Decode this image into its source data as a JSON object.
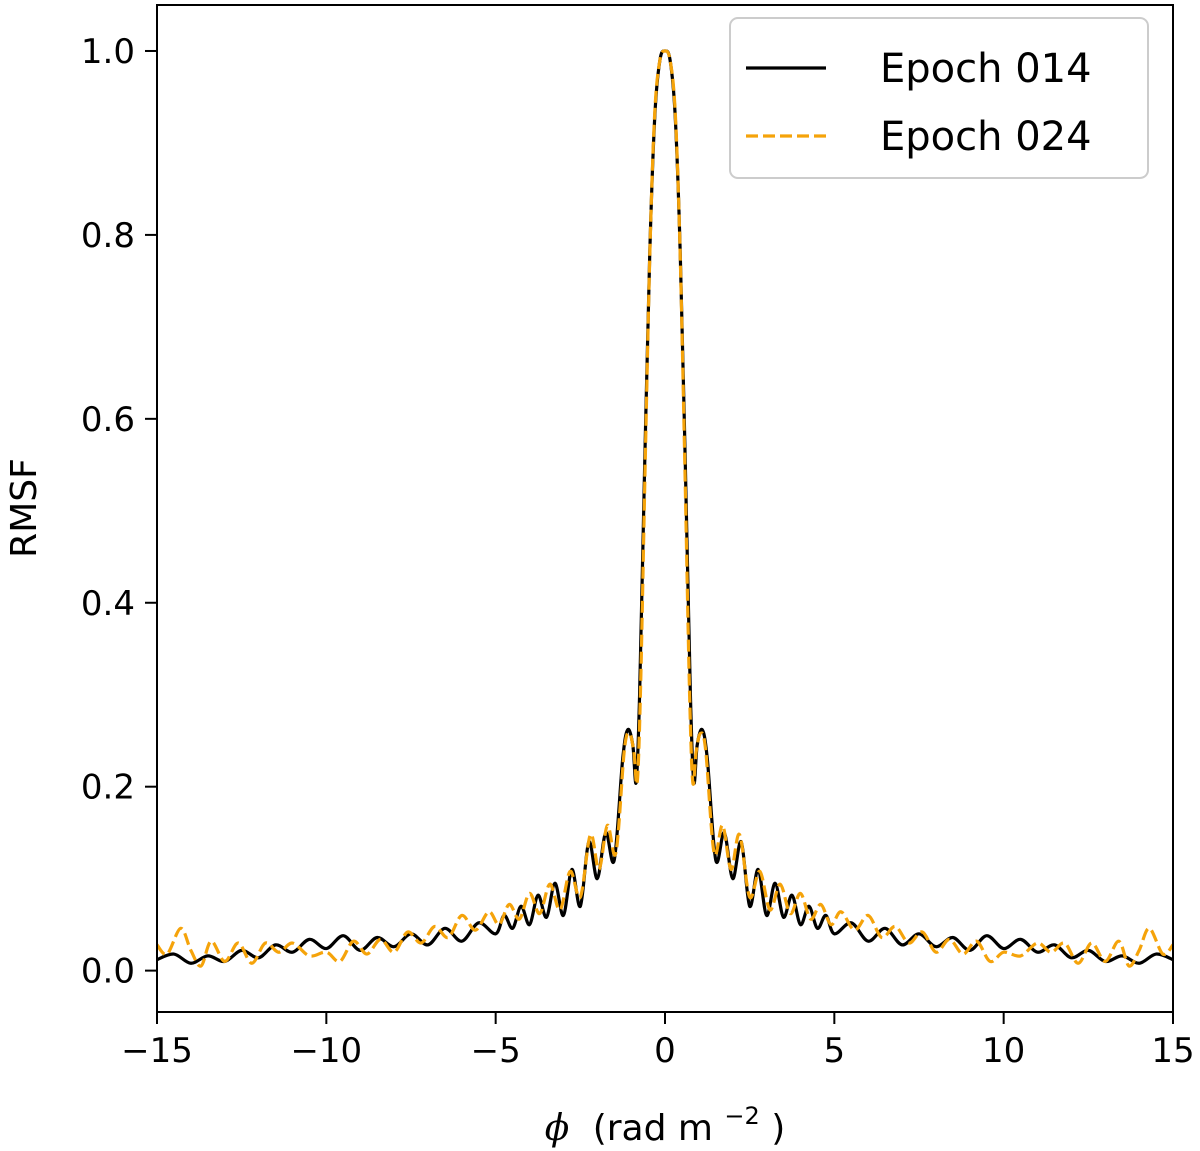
{
  "chart_data": {
    "type": "line",
    "title": "",
    "xlabel": "(rad m",
    "xlabel_symbol": "ϕ",
    "xlabel_exp": "−2",
    "xlabel_close": ")",
    "ylabel": "RMSF",
    "xlim": [
      -15,
      15
    ],
    "ylim": [
      -0.045,
      1.05
    ],
    "x_ticks": [
      -15,
      -10,
      -5,
      0,
      5,
      10,
      15
    ],
    "x_tick_labels": [
      "−15",
      "−10",
      "−5",
      "0",
      "5",
      "10",
      "15"
    ],
    "y_ticks": [
      0.0,
      0.2,
      0.4,
      0.6,
      0.8,
      1.0
    ],
    "y_tick_labels": [
      "0.0",
      "0.2",
      "0.4",
      "0.6",
      "0.8",
      "1.0"
    ],
    "grid": false,
    "legend_position": "top-right",
    "series": [
      {
        "name": "Epoch 014",
        "color": "#000000",
        "dash": "solid",
        "x": [
          -15,
          -14.5,
          -14.0,
          -13.5,
          -13.0,
          -12.5,
          -12.0,
          -11.5,
          -11.0,
          -10.5,
          -10.0,
          -9.5,
          -9.0,
          -8.5,
          -8.0,
          -7.5,
          -7.0,
          -6.5,
          -6.0,
          -5.5,
          -5.0,
          -4.75,
          -4.5,
          -4.25,
          -4.0,
          -3.75,
          -3.5,
          -3.25,
          -3.0,
          -2.75,
          -2.5,
          -2.25,
          -2.0,
          -1.75,
          -1.5,
          -1.25,
          -1.1,
          -0.95,
          -0.85,
          -0.75,
          -0.6,
          -0.45,
          -0.3,
          -0.15,
          0,
          0.15,
          0.3,
          0.45,
          0.6,
          0.75,
          0.85,
          0.95,
          1.1,
          1.25,
          1.5,
          1.75,
          2.0,
          2.25,
          2.5,
          2.75,
          3.0,
          3.25,
          3.5,
          3.75,
          4.0,
          4.25,
          4.5,
          4.75,
          5.0,
          5.5,
          6.0,
          6.5,
          7.0,
          7.5,
          8.0,
          8.5,
          9.0,
          9.5,
          10.0,
          10.5,
          11.0,
          11.5,
          12.0,
          12.5,
          13.0,
          13.5,
          14.0,
          14.5,
          15
        ],
        "y": [
          0.012,
          0.018,
          0.008,
          0.016,
          0.01,
          0.022,
          0.014,
          0.028,
          0.02,
          0.034,
          0.024,
          0.038,
          0.022,
          0.036,
          0.026,
          0.04,
          0.028,
          0.046,
          0.032,
          0.052,
          0.04,
          0.06,
          0.046,
          0.07,
          0.05,
          0.082,
          0.058,
          0.095,
          0.06,
          0.11,
          0.07,
          0.14,
          0.1,
          0.15,
          0.12,
          0.23,
          0.262,
          0.245,
          0.205,
          0.3,
          0.55,
          0.78,
          0.93,
          0.99,
          1.0,
          0.99,
          0.93,
          0.78,
          0.55,
          0.3,
          0.205,
          0.245,
          0.262,
          0.23,
          0.12,
          0.15,
          0.1,
          0.14,
          0.07,
          0.11,
          0.06,
          0.095,
          0.058,
          0.082,
          0.05,
          0.07,
          0.046,
          0.06,
          0.04,
          0.052,
          0.032,
          0.046,
          0.028,
          0.04,
          0.026,
          0.036,
          0.022,
          0.038,
          0.024,
          0.034,
          0.02,
          0.028,
          0.014,
          0.022,
          0.01,
          0.016,
          0.008,
          0.018,
          0.012
        ]
      },
      {
        "name": "Epoch 024",
        "color": "#f5a30a",
        "dash": "dashed",
        "x": [
          -15,
          -14.7,
          -14.3,
          -14.0,
          -13.7,
          -13.4,
          -13.0,
          -12.6,
          -12.2,
          -11.8,
          -11.4,
          -11.0,
          -10.5,
          -10.0,
          -9.6,
          -9.2,
          -8.8,
          -8.4,
          -8.0,
          -7.6,
          -7.2,
          -6.8,
          -6.4,
          -6.0,
          -5.6,
          -5.2,
          -4.9,
          -4.6,
          -4.3,
          -4.0,
          -3.7,
          -3.4,
          -3.1,
          -2.8,
          -2.5,
          -2.2,
          -1.95,
          -1.7,
          -1.45,
          -1.2,
          -1.05,
          -0.92,
          -0.82,
          -0.72,
          -0.58,
          -0.44,
          -0.3,
          -0.15,
          0,
          0.15,
          0.3,
          0.44,
          0.58,
          0.72,
          0.82,
          0.92,
          1.05,
          1.2,
          1.45,
          1.7,
          1.95,
          2.2,
          2.5,
          2.8,
          3.1,
          3.4,
          3.7,
          4.0,
          4.3,
          4.6,
          4.9,
          5.2,
          5.6,
          6.0,
          6.4,
          6.8,
          7.2,
          7.6,
          8.0,
          8.4,
          8.8,
          9.2,
          9.6,
          10.0,
          10.5,
          11.0,
          11.4,
          11.8,
          12.2,
          12.6,
          13.0,
          13.4,
          13.7,
          14.0,
          14.3,
          14.7,
          15
        ],
        "y": [
          0.028,
          0.018,
          0.046,
          0.022,
          0.005,
          0.032,
          0.01,
          0.03,
          0.008,
          0.03,
          0.02,
          0.03,
          0.016,
          0.02,
          0.01,
          0.032,
          0.018,
          0.034,
          0.02,
          0.042,
          0.03,
          0.048,
          0.036,
          0.06,
          0.044,
          0.064,
          0.05,
          0.072,
          0.056,
          0.084,
          0.062,
          0.094,
          0.066,
          0.108,
          0.08,
          0.148,
          0.11,
          0.158,
          0.128,
          0.24,
          0.258,
          0.238,
          0.205,
          0.31,
          0.56,
          0.79,
          0.935,
          0.99,
          1.0,
          0.99,
          0.935,
          0.79,
          0.56,
          0.31,
          0.205,
          0.238,
          0.258,
          0.24,
          0.128,
          0.158,
          0.11,
          0.148,
          0.08,
          0.108,
          0.066,
          0.094,
          0.062,
          0.084,
          0.056,
          0.072,
          0.05,
          0.064,
          0.044,
          0.06,
          0.036,
          0.048,
          0.03,
          0.042,
          0.02,
          0.034,
          0.018,
          0.032,
          0.01,
          0.02,
          0.016,
          0.03,
          0.02,
          0.03,
          0.008,
          0.03,
          0.01,
          0.032,
          0.005,
          0.022,
          0.046,
          0.018,
          0.028
        ]
      }
    ]
  }
}
